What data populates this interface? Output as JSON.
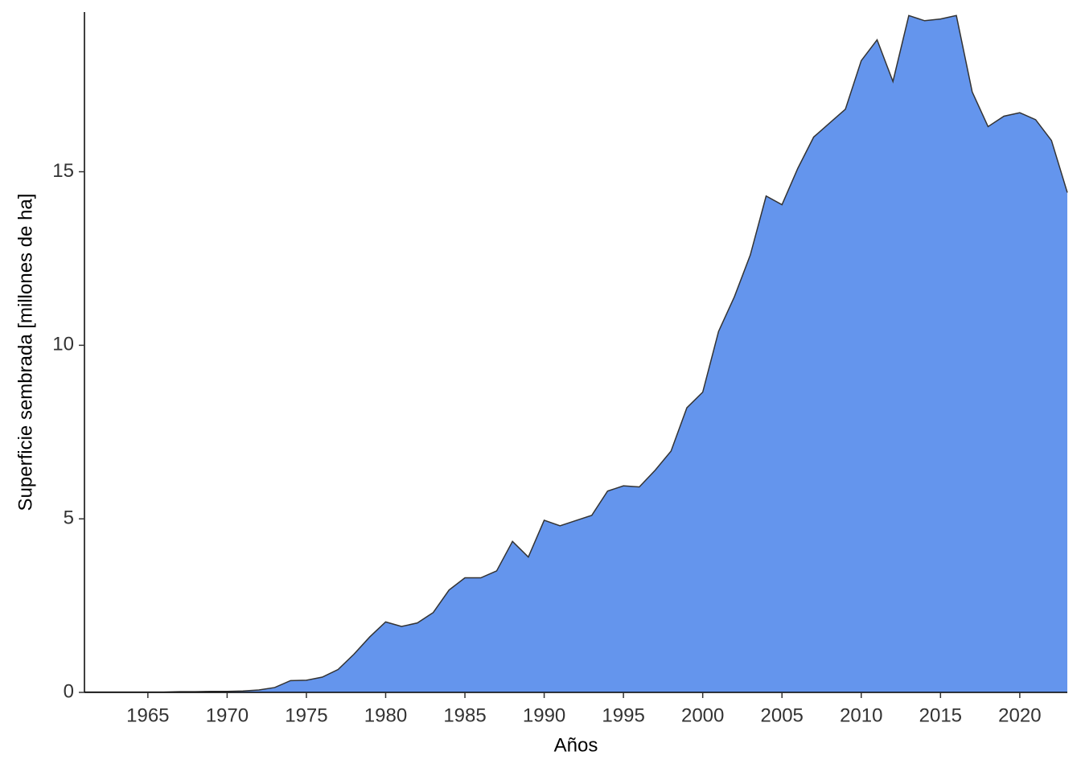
{
  "chart_data": {
    "type": "area",
    "x_label": "Años",
    "y_label": "Superficie sembrada [millones de ha]",
    "x": [
      1961,
      1962,
      1963,
      1964,
      1965,
      1966,
      1967,
      1968,
      1969,
      1970,
      1971,
      1972,
      1973,
      1974,
      1975,
      1976,
      1977,
      1978,
      1979,
      1980,
      1981,
      1982,
      1983,
      1984,
      1985,
      1986,
      1987,
      1988,
      1989,
      1990,
      1991,
      1992,
      1993,
      1994,
      1995,
      1996,
      1997,
      1998,
      1999,
      2000,
      2001,
      2002,
      2003,
      2004,
      2005,
      2006,
      2007,
      2008,
      2009,
      2010,
      2011,
      2012,
      2013,
      2014,
      2015,
      2016,
      2017,
      2018,
      2019,
      2020,
      2021,
      2022,
      2023
    ],
    "values": [
      0.01,
      0.01,
      0.01,
      0.01,
      0.01,
      0.01,
      0.02,
      0.02,
      0.03,
      0.03,
      0.04,
      0.07,
      0.14,
      0.34,
      0.35,
      0.44,
      0.66,
      1.1,
      1.6,
      2.03,
      1.9,
      2.0,
      2.3,
      2.95,
      3.3,
      3.3,
      3.5,
      4.35,
      3.9,
      4.96,
      4.8,
      4.95,
      5.1,
      5.8,
      5.95,
      5.92,
      6.4,
      6.95,
      8.2,
      8.65,
      10.4,
      11.4,
      12.6,
      14.3,
      14.05,
      15.1,
      16.0,
      16.4,
      16.8,
      18.2,
      18.8,
      17.6,
      19.5,
      19.35,
      19.4,
      19.5,
      17.3,
      16.3,
      16.6,
      16.7,
      16.5,
      15.9,
      14.4
    ],
    "color": "#6495ED",
    "xlim": [
      1961,
      2023
    ],
    "xticks": [
      1965,
      1970,
      1975,
      1980,
      1985,
      1990,
      1995,
      2000,
      2005,
      2010,
      2015,
      2020
    ],
    "ylim": [
      0,
      19.6
    ],
    "yticks": [
      0,
      5,
      10,
      15
    ],
    "grid": false
  }
}
